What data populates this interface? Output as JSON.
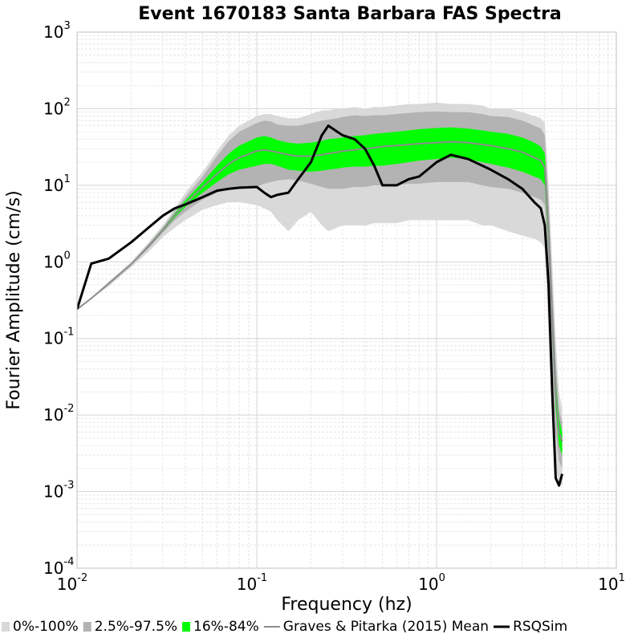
{
  "chart_data": {
    "type": "line",
    "title": "Event 1670183 Santa Barbara FAS Spectra",
    "xlabel": "Frequency (hz)",
    "ylabel": "Fourier Amplitude (cm/s)",
    "xscale": "log",
    "yscale": "log",
    "xlim": [
      0.01,
      10
    ],
    "ylim": [
      0.0001,
      1000
    ],
    "x_ticks": [
      {
        "base": "10",
        "exp": "-2"
      },
      {
        "base": "10",
        "exp": "-1"
      },
      {
        "base": "10",
        "exp": "0"
      },
      {
        "base": "10",
        "exp": "1"
      }
    ],
    "y_ticks": [
      {
        "base": "10",
        "exp": "-4"
      },
      {
        "base": "10",
        "exp": "-3"
      },
      {
        "base": "10",
        "exp": "-2"
      },
      {
        "base": "10",
        "exp": "-1"
      },
      {
        "base": "10",
        "exp": "0"
      },
      {
        "base": "10",
        "exp": "1"
      },
      {
        "base": "10",
        "exp": "2"
      },
      {
        "base": "10",
        "exp": "3"
      }
    ],
    "grid": true,
    "legend_position": "bottom",
    "legend": [
      {
        "label": "0%-100%",
        "kind": "box",
        "color": "#d9d9d9"
      },
      {
        "label": "2.5%-97.5%",
        "kind": "box",
        "color": "#b3b3b3"
      },
      {
        "label": "16%-84%",
        "kind": "box",
        "color": "#00ff00"
      },
      {
        "label": "Graves & Pitarka (2015) Mean",
        "kind": "line",
        "color": "#8c8c8c"
      },
      {
        "label": "RSQSim",
        "kind": "line",
        "color": "#000000"
      }
    ],
    "x": [
      0.01,
      0.012,
      0.015,
      0.02,
      0.025,
      0.03,
      0.035,
      0.04,
      0.05,
      0.06,
      0.07,
      0.08,
      0.1,
      0.11,
      0.12,
      0.13,
      0.15,
      0.17,
      0.2,
      0.23,
      0.25,
      0.28,
      0.3,
      0.35,
      0.4,
      0.45,
      0.5,
      0.6,
      0.7,
      0.8,
      1.0,
      1.2,
      1.5,
      1.8,
      2.0,
      2.5,
      3.0,
      3.5,
      3.8,
      4.0,
      4.2,
      4.4,
      4.6,
      4.8,
      5.0
    ],
    "series": [
      {
        "name": "0%-100%",
        "band": "outer",
        "color": "#d9d9d9",
        "lower": [
          0.24,
          0.33,
          0.48,
          0.85,
          1.35,
          2.1,
          2.8,
          3.5,
          4.8,
          5.5,
          6.0,
          6.0,
          5.5,
          5.0,
          4.5,
          3.5,
          2.5,
          3.5,
          4.5,
          3.0,
          2.5,
          2.8,
          3.0,
          3.0,
          3.0,
          3.2,
          3.2,
          3.2,
          3.5,
          3.5,
          3.5,
          3.5,
          3.5,
          3.0,
          3.0,
          2.5,
          2.2,
          2.0,
          1.8,
          1.5,
          0.1,
          0.01,
          0.002,
          0.0012,
          0.0012
        ],
        "upper": [
          0.24,
          0.34,
          0.55,
          1.0,
          1.8,
          3.0,
          5.0,
          8.0,
          15,
          28,
          45,
          60,
          80,
          85,
          85,
          80,
          75,
          75,
          85,
          95,
          95,
          100,
          100,
          105,
          100,
          105,
          105,
          110,
          115,
          115,
          120,
          115,
          115,
          110,
          100,
          100,
          90,
          80,
          75,
          65,
          10,
          1.0,
          0.1,
          0.02,
          0.012
        ]
      },
      {
        "name": "2.5%-97.5%",
        "band": "middle",
        "color": "#b3b3b3",
        "lower": [
          0.24,
          0.33,
          0.5,
          0.9,
          1.5,
          2.4,
          3.5,
          4.5,
          6.5,
          8.0,
          9.0,
          9.5,
          9.5,
          10.5,
          11,
          11.5,
          12,
          11.5,
          10.5,
          9.5,
          9.0,
          9.0,
          9.0,
          9.5,
          9.5,
          10.0,
          10.0,
          10.0,
          10.5,
          10.5,
          11.0,
          11.0,
          11.0,
          10.0,
          9.5,
          9.0,
          8.0,
          7.0,
          6.5,
          5.5,
          0.8,
          0.05,
          0.006,
          0.0025,
          0.002
        ],
        "upper": [
          0.24,
          0.34,
          0.54,
          0.95,
          1.7,
          2.8,
          4.6,
          7.0,
          13,
          24,
          38,
          50,
          65,
          70,
          68,
          62,
          60,
          60,
          65,
          70,
          72,
          75,
          78,
          82,
          80,
          82,
          82,
          85,
          88,
          90,
          92,
          90,
          90,
          85,
          80,
          78,
          70,
          60,
          55,
          45,
          6.0,
          0.5,
          0.05,
          0.012,
          0.008
        ]
      },
      {
        "name": "16%-84%",
        "band": "inner",
        "color": "#00ff00",
        "lower": [
          0.24,
          0.33,
          0.51,
          0.92,
          1.55,
          2.5,
          3.8,
          5.2,
          8.0,
          11,
          14,
          16,
          18,
          19,
          19,
          18,
          16,
          15.5,
          15,
          15.5,
          16,
          16.5,
          17,
          17.5,
          17.5,
          18,
          18,
          19,
          20,
          21,
          22,
          23,
          22,
          20,
          19,
          17,
          15,
          13,
          12,
          10,
          1.5,
          0.12,
          0.012,
          0.004,
          0.003
        ],
        "upper": [
          0.24,
          0.335,
          0.53,
          0.94,
          1.65,
          2.7,
          4.3,
          6.3,
          11,
          18,
          26,
          33,
          42,
          44,
          42,
          39,
          36,
          35,
          36,
          38,
          40,
          41,
          42,
          44,
          45,
          47,
          48,
          50,
          52,
          54,
          56,
          57,
          55,
          52,
          50,
          47,
          42,
          36,
          32,
          26,
          3.5,
          0.3,
          0.03,
          0.009,
          0.006
        ]
      },
      {
        "name": "Graves & Pitarka (2015) Mean",
        "color": "#8c8c8c",
        "values": [
          0.24,
          0.334,
          0.52,
          0.93,
          1.6,
          2.6,
          4.05,
          5.7,
          9.5,
          14,
          19,
          23,
          28,
          29,
          28,
          27,
          25,
          24,
          24,
          25,
          26,
          27,
          28,
          29,
          30,
          31,
          32,
          33,
          34,
          35,
          36,
          37,
          36,
          34,
          33,
          30,
          27,
          23,
          21,
          17,
          2.5,
          0.2,
          0.02,
          0.006,
          0.0045
        ]
      },
      {
        "name": "RSQSim",
        "color": "#000000",
        "values": [
          0.24,
          0.95,
          1.1,
          1.8,
          2.8,
          4.0,
          5.0,
          5.6,
          7.0,
          8.5,
          9.0,
          9.3,
          9.5,
          8.0,
          7.0,
          7.5,
          8.0,
          12,
          20,
          45,
          60,
          50,
          45,
          40,
          30,
          18,
          10,
          10,
          12,
          13,
          20,
          25,
          22,
          18,
          16,
          12,
          9,
          6,
          5,
          3,
          0.5,
          0.02,
          0.0015,
          0.0012,
          0.0017
        ]
      }
    ]
  }
}
